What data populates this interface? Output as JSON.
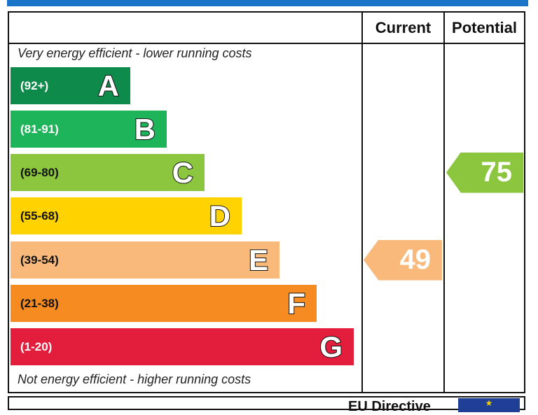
{
  "headers": {
    "current": "Current",
    "potential": "Potential"
  },
  "captions": {
    "top": "Very energy efficient - lower running costs",
    "bottom": "Not energy efficient - higher running costs"
  },
  "colors": {
    "A": "#0e8a4a",
    "B": "#1db45a",
    "C": "#8cc63e",
    "D": "#ffd200",
    "E": "#f9b97a",
    "F": "#f58b21",
    "G": "#e31d3c",
    "topband": "#1a75c9"
  },
  "chart_data": {
    "type": "bar",
    "categories": [
      "A",
      "B",
      "C",
      "D",
      "E",
      "F",
      "G"
    ],
    "ranges": [
      "(92+)",
      "(81-91)",
      "(69-80)",
      "(55-68)",
      "(39-54)",
      "(21-38)",
      "(1-20)"
    ],
    "current": {
      "value": "49",
      "band": "E"
    },
    "potential": {
      "value": "75",
      "band": "C"
    }
  },
  "footer": {
    "text": "EU Directive",
    "flag": "★"
  }
}
